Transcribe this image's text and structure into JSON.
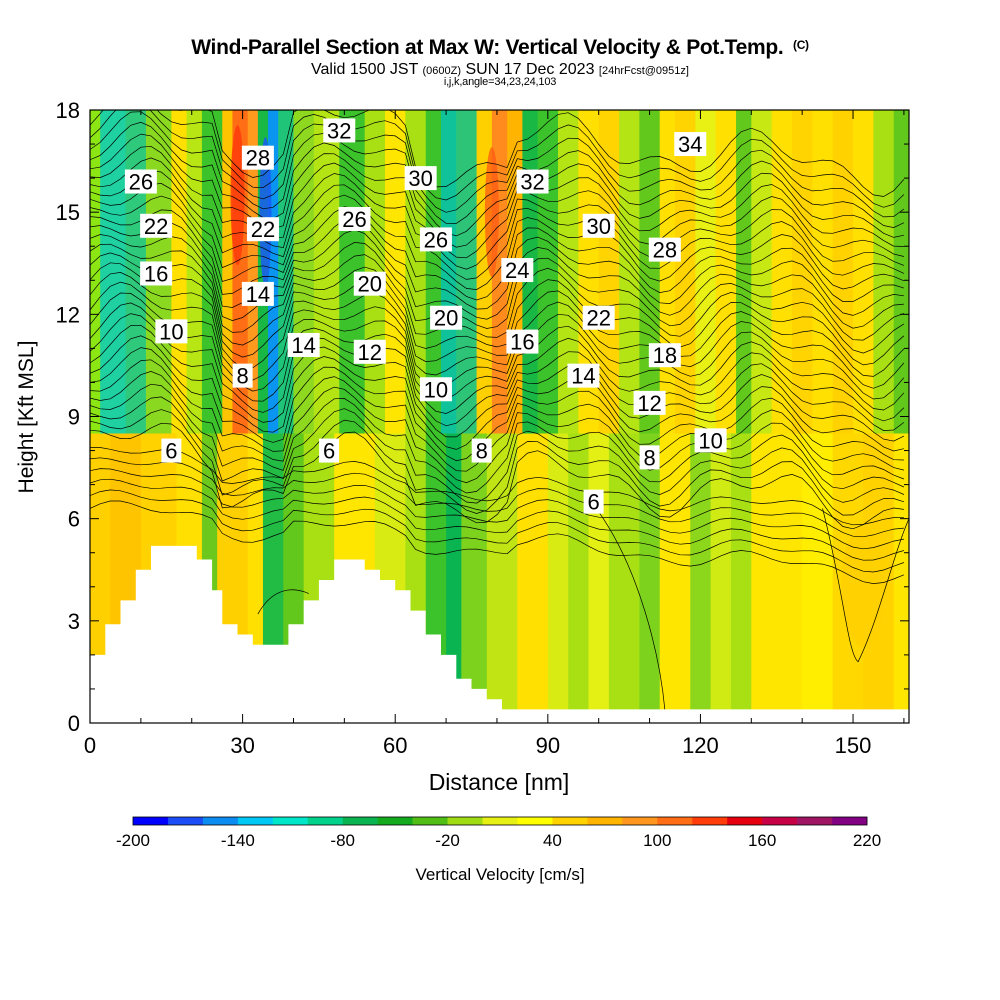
{
  "header": {
    "title": "Wind-Parallel Section at Max W: Vertical Velocity & Pot.Temp.",
    "copyright": "(C)",
    "valid_prefix": "Valid 1500 JST",
    "valid_utc": "(0600Z)",
    "valid_date": "SUN 17 Dec 2023",
    "forecast": "[24hrFcst@0951z]",
    "indices": "i,j,k,angle=34,23,24,103"
  },
  "chart_data": {
    "type": "heatmap",
    "xlabel": "Distance [nm]",
    "ylabel": "Height [Kft MSL]",
    "xlim": [
      0,
      161
    ],
    "ylim": [
      0,
      18
    ],
    "x_ticks": [
      0,
      30,
      60,
      90,
      120,
      150
    ],
    "y_ticks": [
      0,
      3,
      6,
      9,
      12,
      15,
      18
    ],
    "grid": false,
    "colorbar": {
      "label": "Vertical Velocity [cm/s]",
      "min": -200,
      "max": 220,
      "tick_labels": [
        -200,
        -140,
        -80,
        -20,
        40,
        100,
        160,
        220
      ],
      "colors": [
        "#0000ff",
        "#1a4df5",
        "#0a8cf0",
        "#00c8f5",
        "#00e6c8",
        "#00d28c",
        "#0ab450",
        "#14aa1e",
        "#50be14",
        "#a0dc14",
        "#e6f014",
        "#ffff00",
        "#ffd200",
        "#ffb400",
        "#ff961e",
        "#ff6e14",
        "#ff3c0a",
        "#e6000f",
        "#c80046",
        "#a01464",
        "#820082"
      ]
    },
    "contour_labels": [
      {
        "value": "26",
        "x": 10,
        "y": 15.9
      },
      {
        "value": "22",
        "x": 13,
        "y": 14.6
      },
      {
        "value": "16",
        "x": 13,
        "y": 13.2
      },
      {
        "value": "10",
        "x": 16,
        "y": 11.5
      },
      {
        "value": "6",
        "x": 16,
        "y": 8.0
      },
      {
        "value": "28",
        "x": 33,
        "y": 16.6
      },
      {
        "value": "22",
        "x": 34,
        "y": 14.5
      },
      {
        "value": "14",
        "x": 33,
        "y": 12.6
      },
      {
        "value": "8",
        "x": 30,
        "y": 10.2
      },
      {
        "value": "14",
        "x": 42,
        "y": 11.1
      },
      {
        "value": "32",
        "x": 49,
        "y": 17.4
      },
      {
        "value": "26",
        "x": 52,
        "y": 14.8
      },
      {
        "value": "20",
        "x": 55,
        "y": 12.9
      },
      {
        "value": "12",
        "x": 55,
        "y": 10.9
      },
      {
        "value": "6",
        "x": 47,
        "y": 8.0
      },
      {
        "value": "30",
        "x": 65,
        "y": 16.0
      },
      {
        "value": "26",
        "x": 68,
        "y": 14.2
      },
      {
        "value": "20",
        "x": 70,
        "y": 11.9
      },
      {
        "value": "10",
        "x": 68,
        "y": 9.8
      },
      {
        "value": "8",
        "x": 77,
        "y": 8.0
      },
      {
        "value": "32",
        "x": 87,
        "y": 15.9
      },
      {
        "value": "24",
        "x": 84,
        "y": 13.3
      },
      {
        "value": "16",
        "x": 85,
        "y": 11.2
      },
      {
        "value": "30",
        "x": 100,
        "y": 14.6
      },
      {
        "value": "22",
        "x": 100,
        "y": 11.9
      },
      {
        "value": "14",
        "x": 97,
        "y": 10.2
      },
      {
        "value": "6",
        "x": 99,
        "y": 6.5
      },
      {
        "value": "34",
        "x": 118,
        "y": 17.0
      },
      {
        "value": "28",
        "x": 113,
        "y": 13.9
      },
      {
        "value": "18",
        "x": 113,
        "y": 10.8
      },
      {
        "value": "12",
        "x": 110,
        "y": 9.4
      },
      {
        "value": "8",
        "x": 110,
        "y": 7.8
      },
      {
        "value": "10",
        "x": 122,
        "y": 8.3
      }
    ]
  }
}
